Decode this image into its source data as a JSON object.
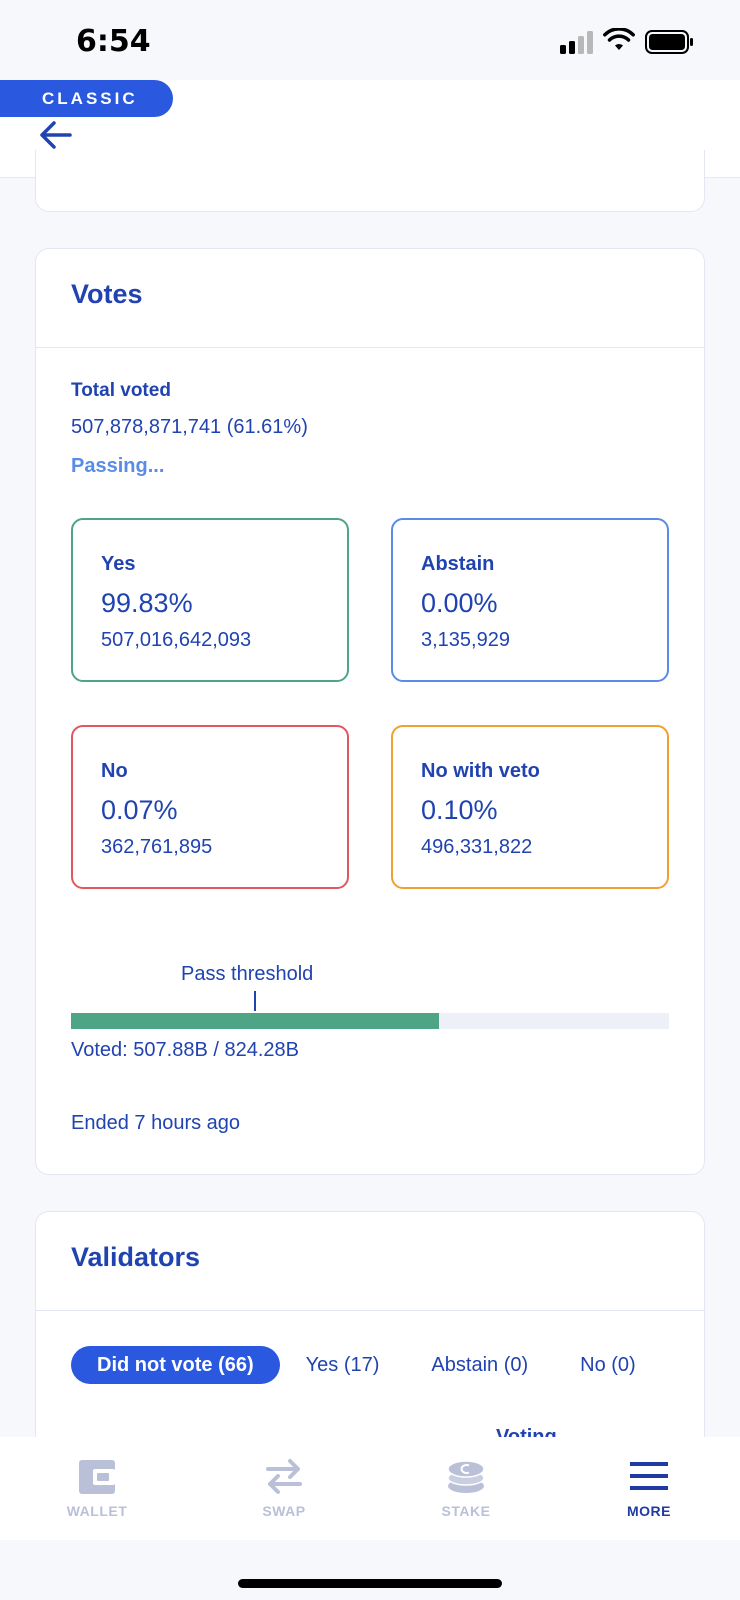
{
  "status_bar": {
    "time": "6:54"
  },
  "header": {
    "badge": "CLASSIC"
  },
  "votes": {
    "title": "Votes",
    "total_label": "Total voted",
    "total_value": "507,878,871,741 (61.61%)",
    "status": "Passing...",
    "options": [
      {
        "label": "Yes",
        "percent": "99.83%",
        "amount": "507,016,642,093",
        "color": "#4ea586"
      },
      {
        "label": "Abstain",
        "percent": "0.00%",
        "amount": "3,135,929",
        "color": "#5a8be6"
      },
      {
        "label": "No",
        "percent": "0.07%",
        "amount": "362,761,895",
        "color": "#e0585f"
      },
      {
        "label": "No with veto",
        "percent": "0.10%",
        "amount": "496,331,822",
        "color": "#f0a030"
      }
    ],
    "threshold_label": "Pass threshold",
    "voted_fraction": 0.6161,
    "voted_text": "Voted: 507.88B / 824.28B",
    "ended_text": "Ended 7 hours ago"
  },
  "validators": {
    "title": "Validators",
    "filters": [
      "Did not vote (66)",
      "Yes (17)",
      "Abstain (0)",
      "No (0)"
    ],
    "column_voting": "Voting"
  },
  "tab_bar": {
    "items": [
      {
        "label": "WALLET",
        "icon": "wallet-icon"
      },
      {
        "label": "SWAP",
        "icon": "swap-icon"
      },
      {
        "label": "STAKE",
        "icon": "stake-icon"
      },
      {
        "label": "MORE",
        "icon": "menu-icon"
      }
    ]
  },
  "colors": {
    "accent": "#2a59e0",
    "text": "#2043b0",
    "inactive": "#b9c0d8"
  }
}
